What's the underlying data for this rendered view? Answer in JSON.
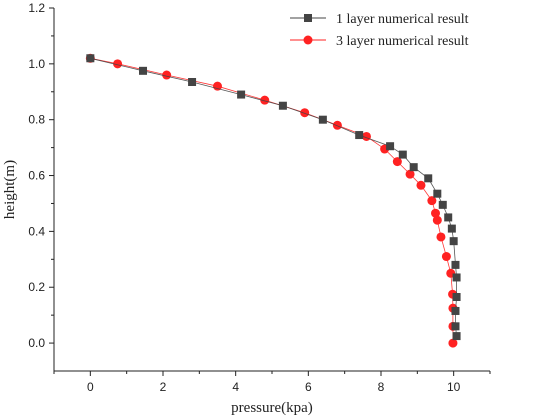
{
  "chart_data": {
    "type": "line",
    "xlabel": "pressure(kpa)",
    "ylabel": "height(m)",
    "xlim": [
      -1,
      11
    ],
    "ylim": [
      -0.1,
      1.2
    ],
    "xticks": [
      0,
      2,
      4,
      6,
      8,
      10
    ],
    "yticks": [
      0.0,
      0.2,
      0.4,
      0.6,
      0.8,
      1.0,
      1.2
    ],
    "xtick_labels": [
      "0",
      "2",
      "4",
      "6",
      "8",
      "10"
    ],
    "ytick_labels": [
      "0.0",
      "0.2",
      "0.4",
      "0.6",
      "0.8",
      "1.0",
      "1.2"
    ],
    "grid": false,
    "legend_position": "top-right",
    "series": [
      {
        "name": "1 layer numerical result",
        "marker": "square",
        "color": "#444444",
        "x": [
          0.0,
          1.45,
          2.8,
          4.15,
          5.3,
          6.4,
          7.4,
          8.25,
          8.6,
          8.9,
          9.3,
          9.55,
          9.7,
          9.85,
          9.95,
          10.0,
          10.05,
          10.08,
          10.08,
          10.05,
          10.05,
          10.08
        ],
        "y": [
          1.02,
          0.975,
          0.935,
          0.89,
          0.85,
          0.8,
          0.745,
          0.705,
          0.675,
          0.63,
          0.59,
          0.535,
          0.495,
          0.45,
          0.41,
          0.365,
          0.28,
          0.235,
          0.165,
          0.115,
          0.06,
          0.025
        ]
      },
      {
        "name": "3 layer numerical result",
        "marker": "circle",
        "color": "#ff2222",
        "x": [
          0.0,
          0.75,
          2.1,
          3.5,
          4.8,
          5.9,
          6.8,
          7.6,
          8.1,
          8.45,
          8.8,
          9.1,
          9.4,
          9.5,
          9.55,
          9.65,
          9.8,
          9.92,
          9.97,
          9.98,
          9.98,
          9.98
        ],
        "y": [
          1.02,
          1.0,
          0.96,
          0.92,
          0.87,
          0.825,
          0.78,
          0.74,
          0.695,
          0.65,
          0.605,
          0.565,
          0.51,
          0.465,
          0.44,
          0.38,
          0.31,
          0.25,
          0.175,
          0.125,
          0.06,
          0.0
        ]
      }
    ]
  }
}
